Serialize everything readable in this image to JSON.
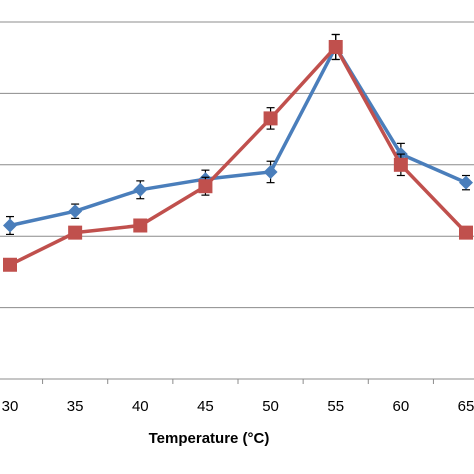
{
  "chart_data": {
    "type": "line",
    "xlabel": "Temperature (°C)",
    "x": [
      30,
      35,
      40,
      45,
      50,
      55,
      60,
      65
    ],
    "xlim": [
      30,
      65
    ],
    "ylim": [
      0,
      100
    ],
    "y_grid_step": 20,
    "grid": "horizontal",
    "series": [
      {
        "color": "#4a7ebb",
        "marker": "diamond",
        "values": [
          43,
          47,
          53,
          56,
          58,
          93,
          63,
          55
        ],
        "errors": [
          2.5,
          2,
          2.5,
          2.5,
          3,
          3.5,
          3,
          2
        ]
      },
      {
        "color": "#c0504d",
        "marker": "square",
        "values": [
          32,
          41,
          43,
          54,
          73,
          93,
          60,
          41
        ],
        "errors": [
          1,
          1,
          1,
          2.5,
          3,
          3.5,
          3,
          1
        ]
      }
    ]
  }
}
